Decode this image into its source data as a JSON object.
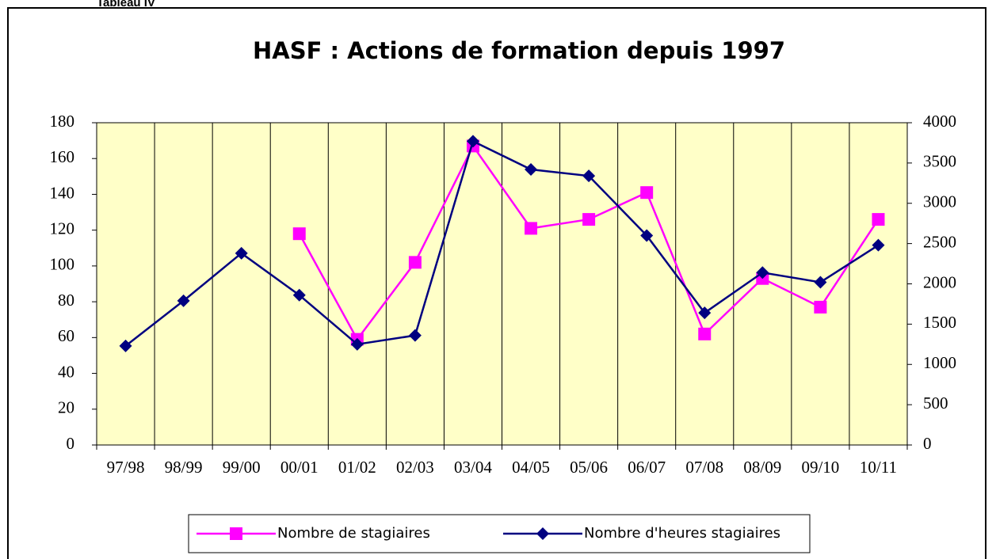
{
  "caption": "Tableau IV",
  "chart_data": {
    "type": "line",
    "title": "HASF : Actions de formation depuis 1997",
    "categories": [
      "97/98",
      "98/99",
      "99/00",
      "00/01",
      "01/02",
      "02/03",
      "03/04",
      "04/05",
      "05/06",
      "06/07",
      "07/08",
      "08/09",
      "09/10",
      "10/11"
    ],
    "series": [
      {
        "name": "Nombre de stagiaires",
        "color": "#ff00ff",
        "marker": "square",
        "values": [
          null,
          null,
          null,
          118,
          59,
          102,
          167,
          121,
          126,
          141,
          62,
          93,
          77,
          126
        ]
      },
      {
        "name": "Nombre d'heures stagiaires",
        "color": "#000080",
        "marker": "diamond",
        "axis": "y2",
        "values": [
          1230,
          1790,
          2380,
          1860,
          1250,
          1360,
          3770,
          3420,
          3340,
          2600,
          1640,
          2140,
          2020,
          2480
        ]
      }
    ],
    "ylim": [
      0,
      180
    ],
    "yticks": [
      0,
      20,
      40,
      60,
      80,
      100,
      120,
      140,
      160,
      180
    ],
    "y2lim": [
      0,
      4000
    ],
    "y2ticks": [
      0,
      500,
      1000,
      1500,
      2000,
      2500,
      3000,
      3500,
      4000
    ],
    "grid": "vertical",
    "legend": "bottom"
  }
}
